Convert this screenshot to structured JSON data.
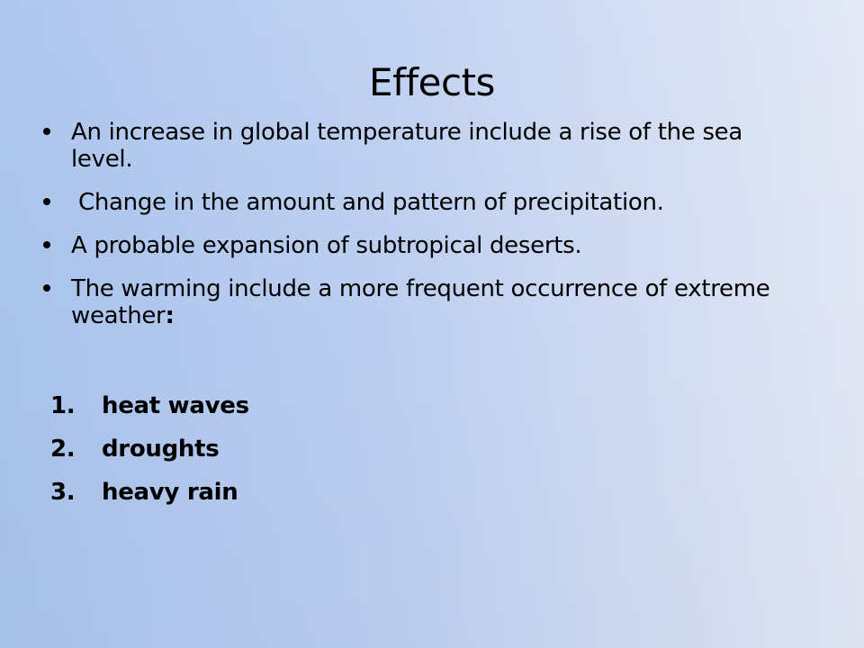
{
  "slide": {
    "title": "Effects",
    "bullets": [
      {
        "text": "An increase in global temperature include a rise of the sea level.",
        "strong_tail": ""
      },
      {
        "text": " Change in the amount and pattern of precipitation.",
        "strong_tail": ""
      },
      {
        "text": "A probable expansion of subtropical deserts.",
        "strong_tail": ""
      },
      {
        "text": "The warming include a more frequent occurrence of extreme weather",
        "strong_tail": ":"
      }
    ],
    "numbered": [
      {
        "marker": "1.",
        "text": "heat waves"
      },
      {
        "marker": "2.",
        "text": "droughts"
      },
      {
        "marker": "3.",
        "text": "heavy rain"
      }
    ]
  }
}
